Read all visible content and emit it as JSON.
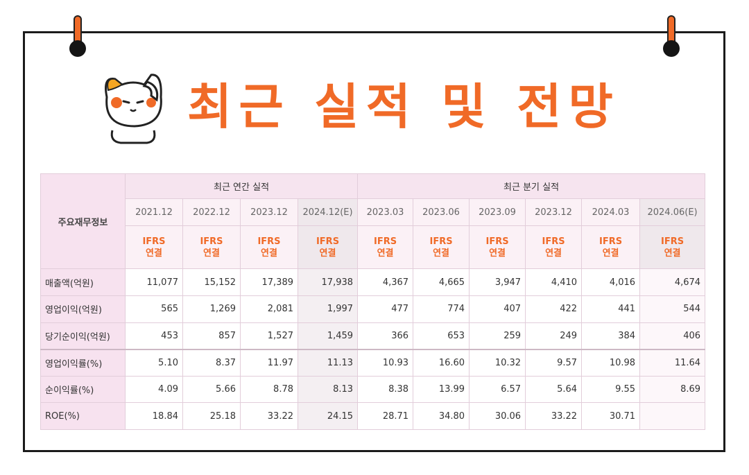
{
  "title": "최근 실적 및 전망",
  "table": {
    "corner_label": "주요재무정보",
    "group_annual": "최근 연간 실적",
    "group_quarter": "최근 분기 실적",
    "periods": [
      "2021.12",
      "2022.12",
      "2023.12",
      "2024.12(E)",
      "2023.03",
      "2023.06",
      "2023.09",
      "2023.12",
      "2024.03",
      "2024.06(E)"
    ],
    "accounting_line1": "IFRS",
    "accounting_line2": "연결",
    "rows": [
      {
        "label": "매출액(억원)",
        "values": [
          "11,077",
          "15,152",
          "17,389",
          "17,938",
          "4,367",
          "4,665",
          "3,947",
          "4,410",
          "4,016",
          "4,674"
        ]
      },
      {
        "label": "영업이익(억원)",
        "values": [
          "565",
          "1,269",
          "2,081",
          "1,997",
          "477",
          "774",
          "407",
          "422",
          "441",
          "544"
        ]
      },
      {
        "label": "당기순이익(억원)",
        "values": [
          "453",
          "857",
          "1,527",
          "1,459",
          "366",
          "653",
          "259",
          "249",
          "384",
          "406"
        ]
      },
      {
        "label": "영업이익률(%)",
        "values": [
          "5.10",
          "8.37",
          "11.97",
          "11.13",
          "10.93",
          "16.60",
          "10.32",
          "9.57",
          "10.98",
          "11.64"
        ]
      },
      {
        "label": "순이익률(%)",
        "values": [
          "4.09",
          "5.66",
          "8.78",
          "8.13",
          "8.38",
          "13.99",
          "6.57",
          "5.64",
          "9.55",
          "8.69"
        ]
      },
      {
        "label": "ROE(%)",
        "values": [
          "18.84",
          "25.18",
          "33.22",
          "24.15",
          "28.71",
          "34.80",
          "30.06",
          "33.22",
          "30.71",
          ""
        ]
      }
    ]
  },
  "colors": {
    "accent": "#f06a27",
    "header_pink": "#f7e2ef",
    "frame": "#1b1b1b"
  }
}
